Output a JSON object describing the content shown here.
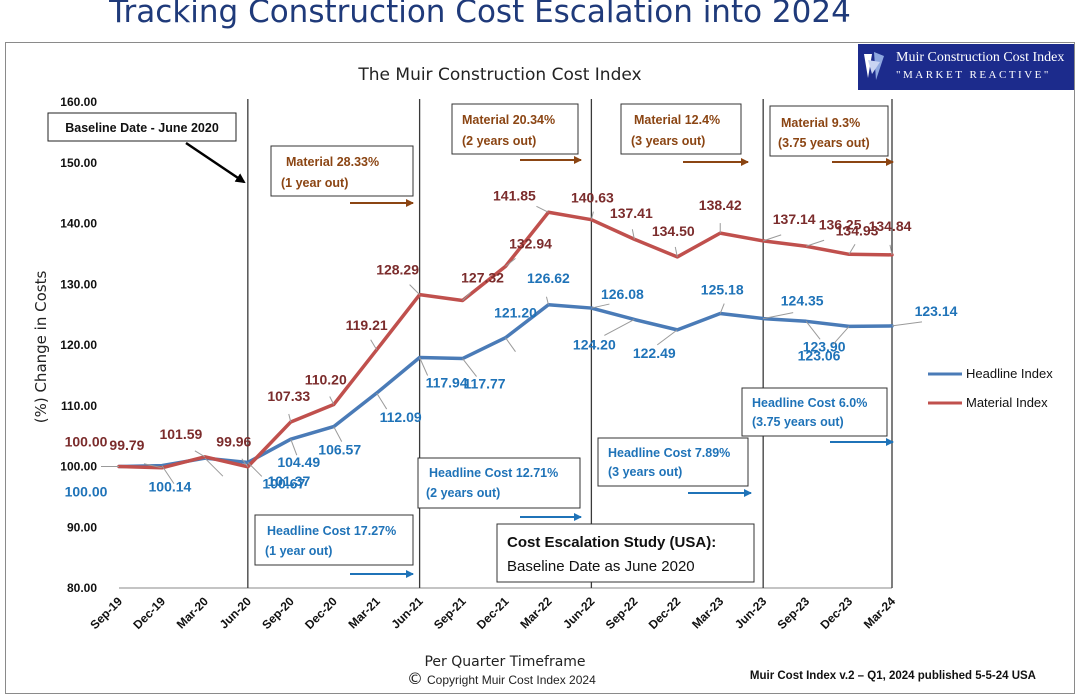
{
  "slide_title": "Tracking Construction Cost Escalation into 2024",
  "logo": {
    "line1": "Muir Construction Cost Index",
    "line2": "\"MARKET REACTIVE\""
  },
  "footer": {
    "copyright": "Copyright Muir Cost Index 2024",
    "copyright_symbol": "©",
    "published": "Muir Cost Index v.2 – Q1, 2024 published 5-5-24 USA"
  },
  "colors": {
    "headline": "#4a7bb7",
    "material": "#c0504d",
    "headline_label": "#1f73b8",
    "material_label": "#7b2c2c",
    "box_headline": "#1f73b8",
    "box_material": "#8b4513"
  },
  "chart_data": {
    "type": "line",
    "title": "The Muir Construction Cost Index",
    "xlabel": "Per Quarter Timeframe",
    "ylabel": "(%) Change in Costs",
    "ylim": [
      80,
      160
    ],
    "yticks": [
      "80.00",
      "90.00",
      "100.00",
      "110.00",
      "120.00",
      "130.00",
      "140.00",
      "150.00",
      "160.00"
    ],
    "grid": false,
    "legend_position": "right",
    "categories": [
      "Sep-19",
      "Dec-19",
      "Mar-20",
      "Jun-20",
      "Sep-20",
      "Dec-20",
      "Mar-21",
      "Jun-21",
      "Sep-21",
      "Dec-21",
      "Mar-22",
      "Jun-22",
      "Sep-22",
      "Dec-22",
      "Mar-23",
      "Jun-23",
      "Sep-23",
      "Dec-23",
      "Mar-24"
    ],
    "series": [
      {
        "name": "Headline Index",
        "values": [
          100.0,
          100.14,
          101.37,
          100.67,
          104.49,
          106.57,
          112.09,
          117.94,
          117.77,
          121.2,
          126.62,
          126.08,
          124.2,
          122.49,
          125.18,
          124.35,
          123.9,
          123.06,
          123.14
        ],
        "labels": [
          "100.00",
          "100.14",
          "101.37",
          "100.67",
          "104.49",
          "106.57",
          "112.09",
          "117.94",
          "117.77",
          "121.20",
          "126.62",
          "126.08",
          "124.20",
          "122.49",
          "125.18",
          "124.35",
          "123.90",
          "123.06",
          "123.14"
        ]
      },
      {
        "name": "Material Index",
        "values": [
          100.0,
          99.79,
          101.59,
          99.96,
          107.33,
          110.2,
          119.21,
          128.29,
          127.32,
          132.94,
          141.85,
          140.63,
          137.41,
          134.5,
          138.42,
          137.14,
          136.25,
          134.93,
          134.84
        ],
        "labels": [
          "100.00",
          "99.79",
          "101.59",
          "99.96",
          "107.33",
          "110.20",
          "119.21",
          "128.29",
          "127.32",
          "132.94",
          "141.85",
          "140.63",
          "137.41",
          "134.50",
          "138.42",
          "137.14",
          "136.25",
          "134.93",
          "134.84"
        ]
      }
    ],
    "annotations": {
      "baseline": "Baseline Date - June 2020",
      "material_boxes": [
        {
          "line1": "Material 28.33%",
          "line2": "(1 year out)"
        },
        {
          "line1": "Material 20.34%",
          "line2": "(2 years out)"
        },
        {
          "line1": "Material 12.4%",
          "line2": "(3 years out)"
        },
        {
          "line1": "Material 9.3%",
          "line2": "(3.75 years out)"
        }
      ],
      "headline_boxes": [
        {
          "line1": "Headline Cost 17.27%",
          "line2": "(1 year out)"
        },
        {
          "line1": "Headline Cost 12.71%",
          "line2": "(2 years out)"
        },
        {
          "line1": "Headline Cost 7.89%",
          "line2": "(3 years out)"
        },
        {
          "line1": "Headline Cost 6.0%",
          "line2": "(3.75 years out)"
        }
      ],
      "study": {
        "line1": "Cost Escalation Study (USA):",
        "line2": "Baseline Date as June 2020"
      }
    }
  }
}
